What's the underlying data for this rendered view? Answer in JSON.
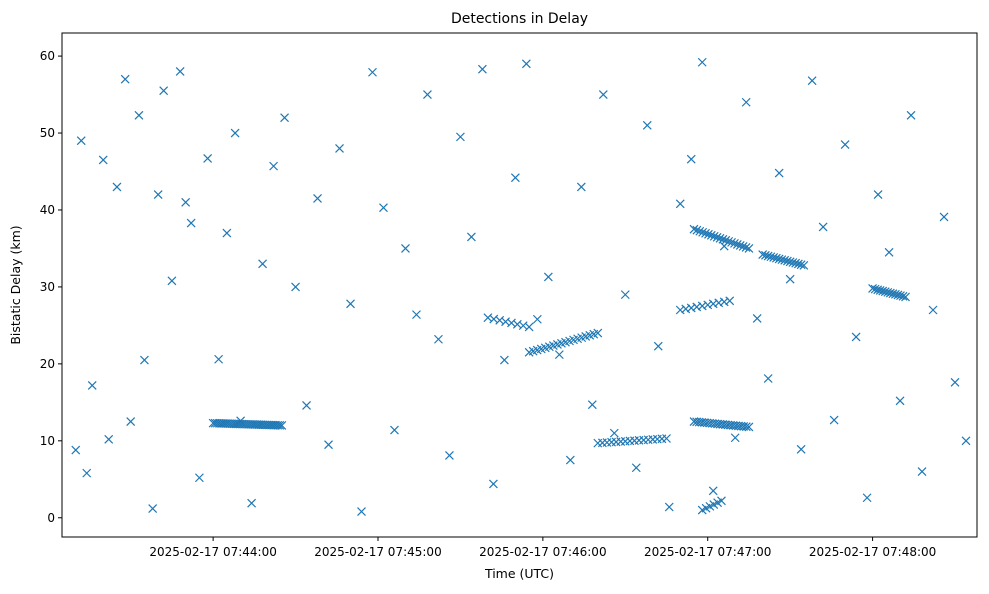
{
  "chart_data": {
    "type": "scatter",
    "title": "Detections in Delay",
    "xlabel": "Time (UTC)",
    "ylabel": "Bistatic Delay (km)",
    "marker": "x",
    "color": "#1f77b4",
    "grid": false,
    "legend": "none",
    "xlim": [
      "2025-02-17 07:43:05",
      "2025-02-17 07:48:38"
    ],
    "ylim": [
      -2.5,
      63
    ],
    "x_ticks": [
      "2025-02-17 07:44:00",
      "2025-02-17 07:45:00",
      "2025-02-17 07:46:00",
      "2025-02-17 07:47:00",
      "2025-02-17 07:48:00"
    ],
    "y_ticks": [
      0,
      10,
      20,
      30,
      40,
      50,
      60
    ],
    "bands": [
      {
        "t0": "2025-02-17 07:44:00",
        "t1": "2025-02-17 07:44:25",
        "y0": 12.3,
        "y1": 12.0,
        "count": 34
      },
      {
        "t0": "2025-02-17 07:45:55",
        "t1": "2025-02-17 07:46:20",
        "y0": 21.5,
        "y1": 24.0,
        "count": 18
      },
      {
        "t0": "2025-02-17 07:46:20",
        "t1": "2025-02-17 07:46:45",
        "y0": 9.7,
        "y1": 10.3,
        "count": 16
      },
      {
        "t0": "2025-02-17 07:46:55",
        "t1": "2025-02-17 07:47:15",
        "y0": 37.5,
        "y1": 35.0,
        "count": 20
      },
      {
        "t0": "2025-02-17 07:46:55",
        "t1": "2025-02-17 07:47:15",
        "y0": 12.5,
        "y1": 11.8,
        "count": 22
      },
      {
        "t0": "2025-02-17 07:47:20",
        "t1": "2025-02-17 07:47:35",
        "y0": 34.2,
        "y1": 32.8,
        "count": 16
      },
      {
        "t0": "2025-02-17 07:48:00",
        "t1": "2025-02-17 07:48:12",
        "y0": 29.8,
        "y1": 28.7,
        "count": 14
      },
      {
        "t0": "2025-02-17 07:46:50",
        "t1": "2025-02-17 07:47:08",
        "y0": 27.0,
        "y1": 28.2,
        "count": 10
      },
      {
        "t0": "2025-02-17 07:45:40",
        "t1": "2025-02-17 07:45:55",
        "y0": 26.0,
        "y1": 24.8,
        "count": 8
      },
      {
        "t0": "2025-02-17 07:46:58",
        "t1": "2025-02-17 07:47:05",
        "y0": 1.0,
        "y1": 2.2,
        "count": 6
      }
    ],
    "scatter_points": {
      "t": [
        "2025-02-17 07:43:10",
        "2025-02-17 07:43:12",
        "2025-02-17 07:43:14",
        "2025-02-17 07:43:16",
        "2025-02-17 07:43:20",
        "2025-02-17 07:43:22",
        "2025-02-17 07:43:25",
        "2025-02-17 07:43:28",
        "2025-02-17 07:43:30",
        "2025-02-17 07:43:33",
        "2025-02-17 07:43:35",
        "2025-02-17 07:43:38",
        "2025-02-17 07:43:40",
        "2025-02-17 07:43:42",
        "2025-02-17 07:43:45",
        "2025-02-17 07:43:48",
        "2025-02-17 07:43:50",
        "2025-02-17 07:43:52",
        "2025-02-17 07:43:55",
        "2025-02-17 07:43:58",
        "2025-02-17 07:44:02",
        "2025-02-17 07:44:05",
        "2025-02-17 07:44:08",
        "2025-02-17 07:44:10",
        "2025-02-17 07:44:14",
        "2025-02-17 07:44:18",
        "2025-02-17 07:44:22",
        "2025-02-17 07:44:26",
        "2025-02-17 07:44:30",
        "2025-02-17 07:44:34",
        "2025-02-17 07:44:38",
        "2025-02-17 07:44:42",
        "2025-02-17 07:44:46",
        "2025-02-17 07:44:50",
        "2025-02-17 07:44:54",
        "2025-02-17 07:44:58",
        "2025-02-17 07:45:02",
        "2025-02-17 07:45:06",
        "2025-02-17 07:45:10",
        "2025-02-17 07:45:14",
        "2025-02-17 07:45:18",
        "2025-02-17 07:45:22",
        "2025-02-17 07:45:26",
        "2025-02-17 07:45:30",
        "2025-02-17 07:45:34",
        "2025-02-17 07:45:38",
        "2025-02-17 07:45:42",
        "2025-02-17 07:45:46",
        "2025-02-17 07:45:50",
        "2025-02-17 07:45:54",
        "2025-02-17 07:45:58",
        "2025-02-17 07:46:02",
        "2025-02-17 07:46:06",
        "2025-02-17 07:46:10",
        "2025-02-17 07:46:14",
        "2025-02-17 07:46:18",
        "2025-02-17 07:46:22",
        "2025-02-17 07:46:26",
        "2025-02-17 07:46:30",
        "2025-02-17 07:46:34",
        "2025-02-17 07:46:38",
        "2025-02-17 07:46:42",
        "2025-02-17 07:46:46",
        "2025-02-17 07:46:50",
        "2025-02-17 07:46:54",
        "2025-02-17 07:46:58",
        "2025-02-17 07:47:02",
        "2025-02-17 07:47:06",
        "2025-02-17 07:47:10",
        "2025-02-17 07:47:14",
        "2025-02-17 07:47:18",
        "2025-02-17 07:47:22",
        "2025-02-17 07:47:26",
        "2025-02-17 07:47:30",
        "2025-02-17 07:47:34",
        "2025-02-17 07:47:38",
        "2025-02-17 07:47:42",
        "2025-02-17 07:47:46",
        "2025-02-17 07:47:50",
        "2025-02-17 07:47:54",
        "2025-02-17 07:47:58",
        "2025-02-17 07:48:02",
        "2025-02-17 07:48:06",
        "2025-02-17 07:48:10",
        "2025-02-17 07:48:14",
        "2025-02-17 07:48:18",
        "2025-02-17 07:48:22",
        "2025-02-17 07:48:26",
        "2025-02-17 07:48:30",
        "2025-02-17 07:48:34"
      ],
      "y": [
        8.8,
        49.0,
        5.8,
        17.2,
        46.5,
        10.2,
        43.0,
        57.0,
        12.5,
        52.3,
        20.5,
        1.2,
        42.0,
        55.5,
        30.8,
        58.0,
        41.0,
        38.3,
        5.2,
        46.7,
        20.6,
        37.0,
        50.0,
        12.6,
        1.9,
        33.0,
        45.7,
        52.0,
        30.0,
        14.6,
        41.5,
        9.5,
        48.0,
        27.8,
        0.8,
        57.9,
        40.3,
        11.4,
        35.0,
        26.4,
        55.0,
        23.2,
        8.1,
        49.5,
        36.5,
        58.3,
        4.4,
        20.5,
        44.2,
        59.0,
        25.8,
        31.3,
        21.2,
        7.5,
        43.0,
        14.7,
        55.0,
        11.0,
        29.0,
        6.5,
        51.0,
        22.3,
        1.4,
        40.8,
        46.6,
        59.2,
        3.5,
        35.3,
        10.4,
        54.0,
        25.9,
        18.1,
        44.8,
        31.0,
        8.9,
        56.8,
        37.8,
        12.7,
        48.5,
        23.5,
        2.6,
        42.0,
        34.5,
        15.2,
        52.3,
        6.0,
        27.0,
        39.1,
        17.6,
        10.0
      ]
    }
  }
}
